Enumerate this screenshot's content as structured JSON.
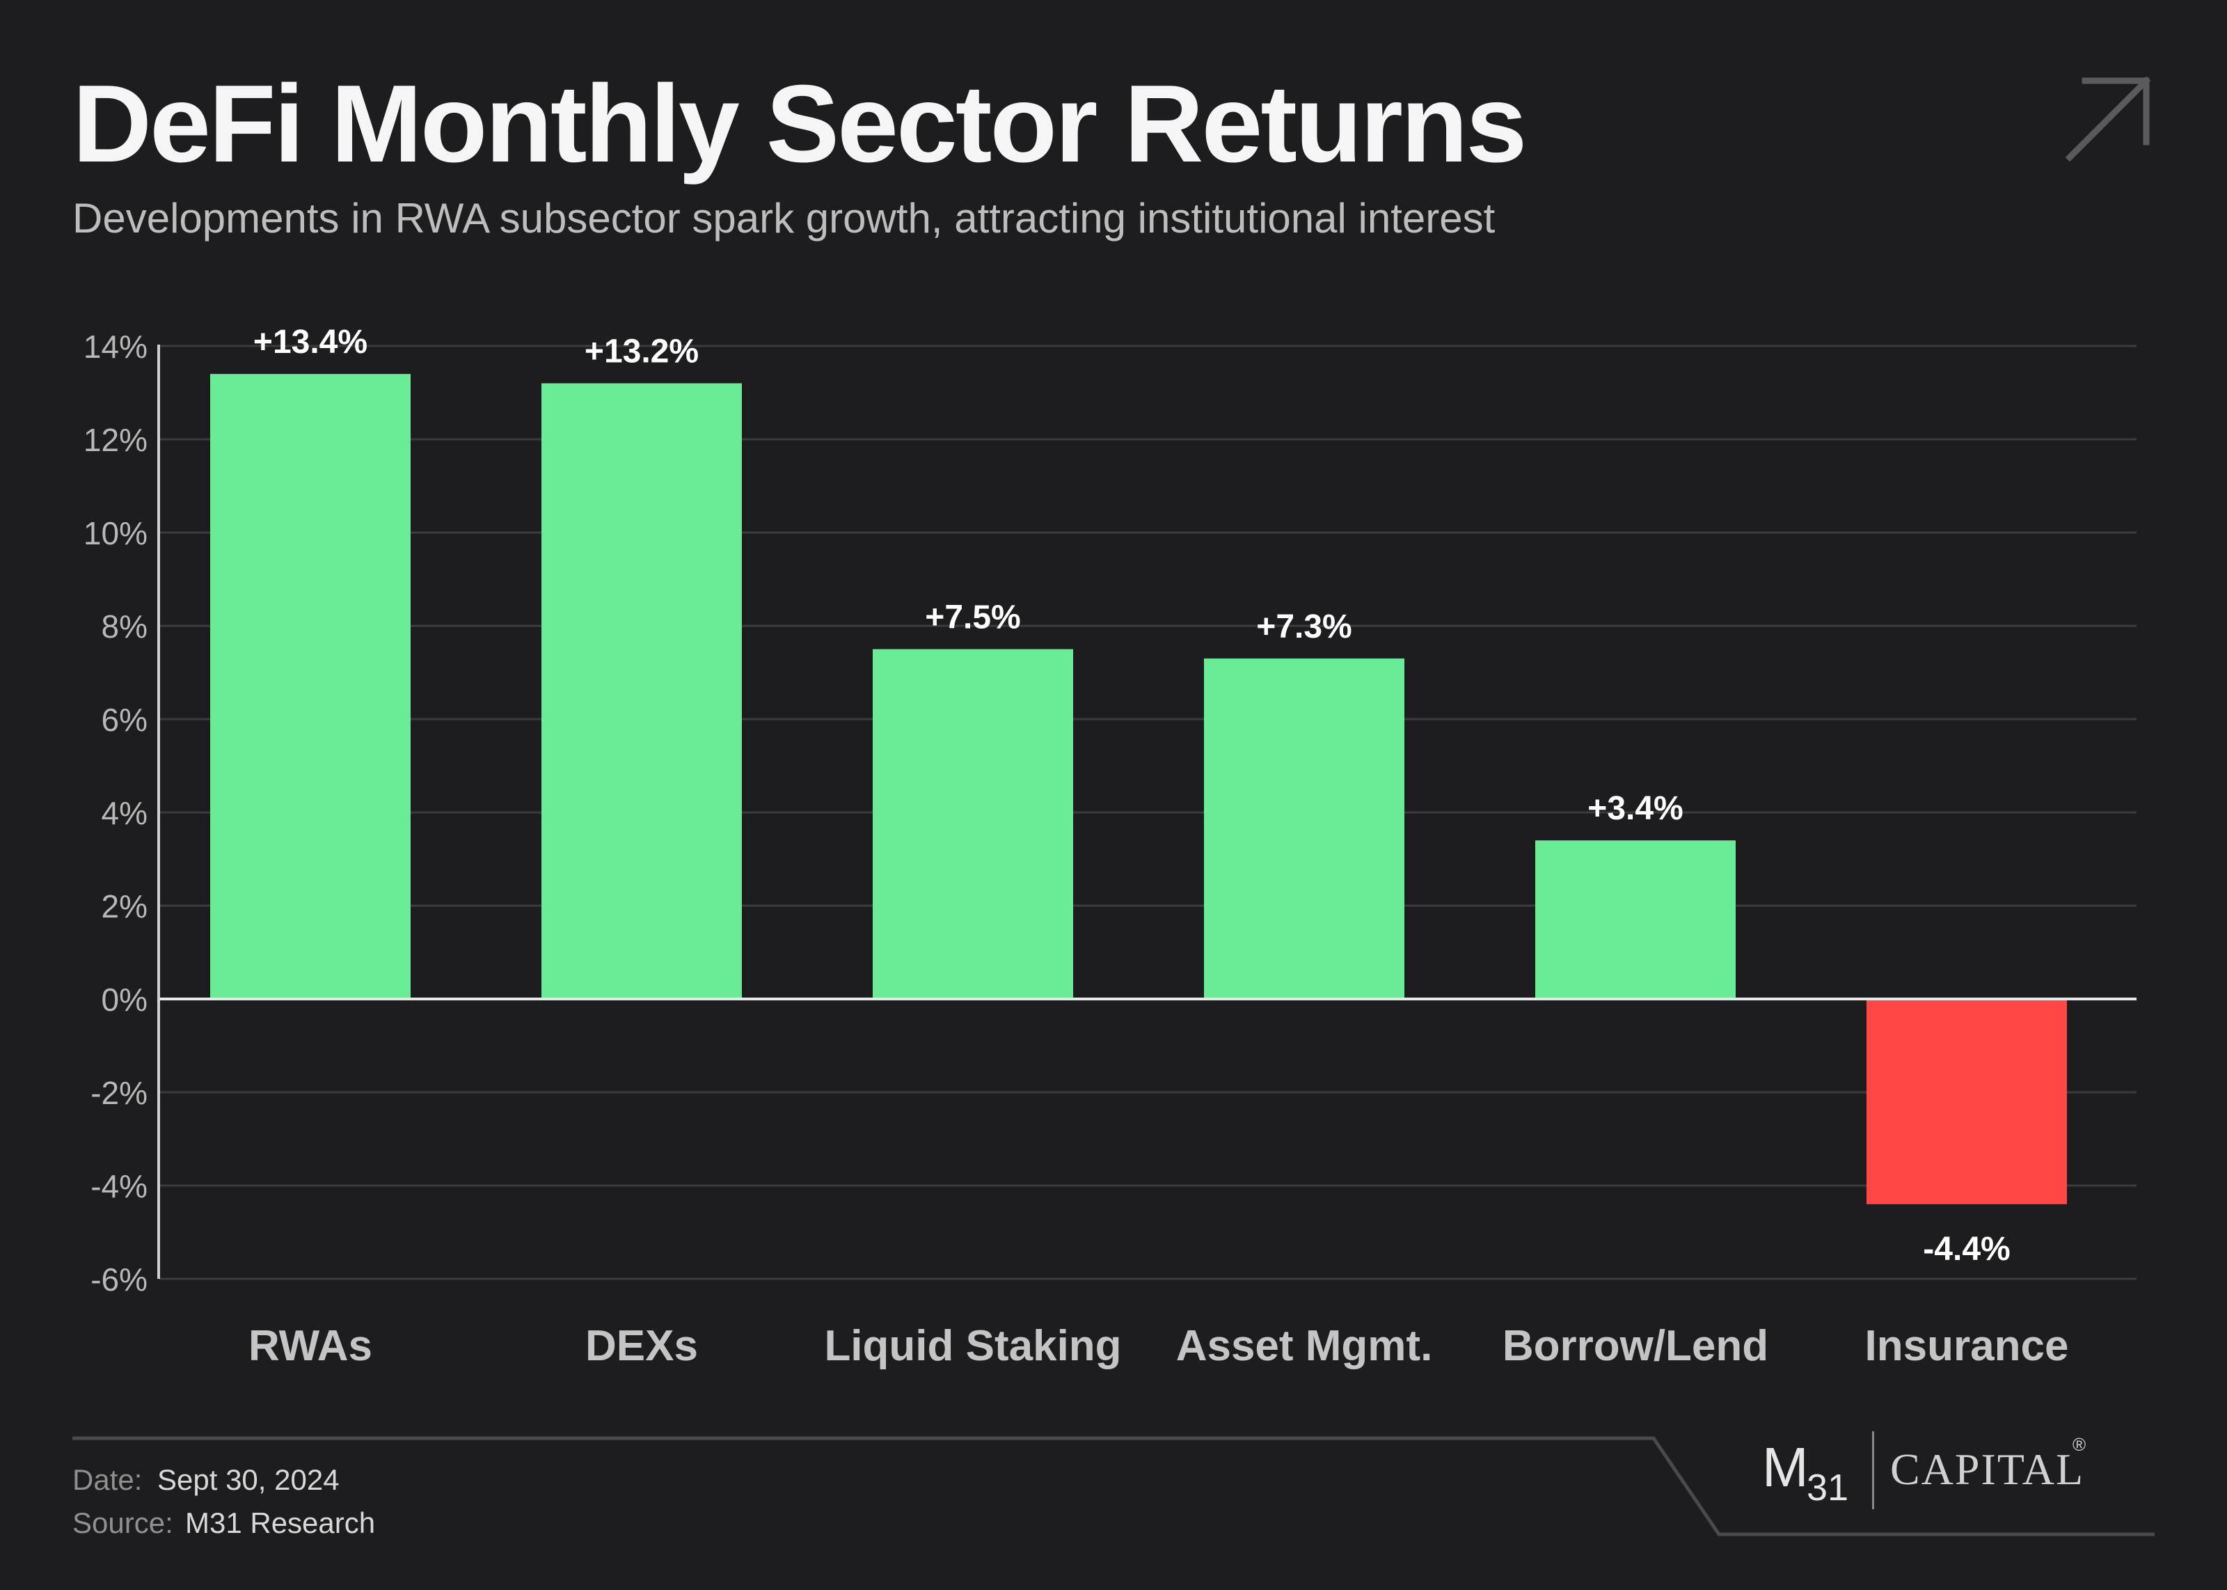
{
  "header": {
    "title": "DeFi Monthly Sector Returns",
    "subtitle": "Developments in RWA subsector spark growth, attracting institutional interest",
    "corner_icon": "arrow-up-right-icon"
  },
  "chart_data": {
    "type": "bar",
    "categories": [
      "RWAs",
      "DEXs",
      "Liquid Staking",
      "Asset Mgmt.",
      "Borrow/Lend",
      "Insurance"
    ],
    "values": [
      13.4,
      13.2,
      7.5,
      7.3,
      3.4,
      -4.4
    ],
    "value_labels": [
      "+13.4%",
      "+13.2%",
      "+7.5%",
      "+7.3%",
      "+3.4%",
      "-4.4%"
    ],
    "ylim": [
      -6,
      14
    ],
    "yticks": [
      14,
      12,
      10,
      8,
      6,
      4,
      2,
      0,
      -2,
      -4,
      -6
    ],
    "ytick_labels": [
      "14%",
      "12%",
      "10%",
      "8%",
      "6%",
      "4%",
      "2%",
      "0%",
      "-2%",
      "-4%",
      "-6%"
    ],
    "grid": true,
    "colors": {
      "positive": "#6aeb95",
      "negative": "#ff4747",
      "grid": "#3c3c3e",
      "zero_line": "#e8e8e8",
      "axis": "#d0d0d0"
    }
  },
  "footer": {
    "date_label": "Date:",
    "date_value": "Sept 30, 2024",
    "source_label": "Source:",
    "source_value": "M31 Research",
    "logo_m": "M",
    "logo_sub": "31",
    "logo_capital": "CAPITAL",
    "logo_reg": "®"
  }
}
